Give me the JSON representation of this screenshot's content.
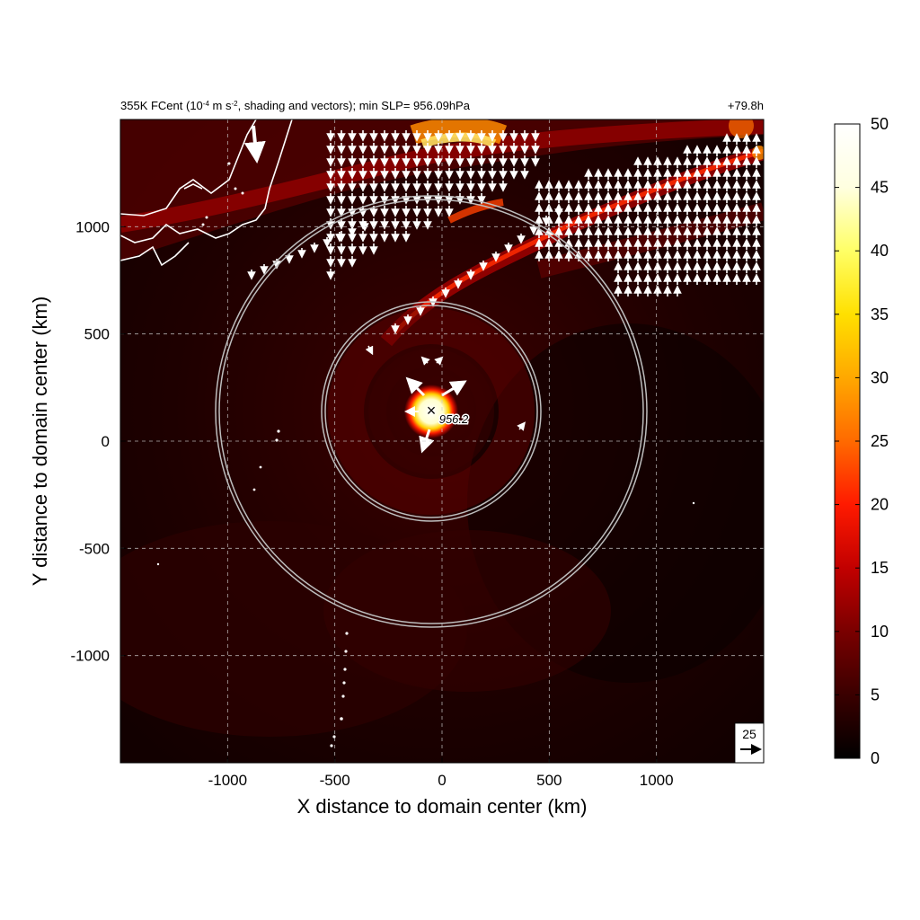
{
  "header": {
    "title_main": "355K FCent (10",
    "title_exp1": "-4",
    "title_mid": " m s",
    "title_exp2": "-2",
    "title_rest": ", shading and vectors); min SLP= 956.09hPa",
    "forecast_hour": "+79.8h"
  },
  "center_marker": {
    "symbol": "×",
    "pressure_label": "956.2"
  },
  "vector_key": {
    "value": "25"
  },
  "colorbar": {
    "min": 0,
    "max": 50,
    "ticks": [
      "0",
      "5",
      "10",
      "15",
      "20",
      "25",
      "30",
      "35",
      "40",
      "45",
      "50"
    ],
    "colors": [
      "#000000",
      "#3a0000",
      "#7a0000",
      "#c20000",
      "#ff1a00",
      "#ff6a00",
      "#ffa800",
      "#ffe000",
      "#ffff66",
      "#ffffe0",
      "#ffffff"
    ]
  },
  "chart_data": {
    "type": "heatmap",
    "title": "355K FCent (10^-4 m s^-2, shading and vectors); min SLP= 956.09hPa",
    "xlabel": "X distance to domain center (km)",
    "ylabel": "Y distance to domain center (km)",
    "xlim": [
      -1500,
      1500
    ],
    "ylim": [
      -1500,
      1500
    ],
    "x_ticks": [
      -1000,
      -500,
      0,
      500,
      1000
    ],
    "y_ticks": [
      -1000,
      -500,
      0,
      500,
      1000
    ],
    "x_tick_labels": [
      "-1000",
      "-500",
      "0",
      "500",
      "1000"
    ],
    "y_tick_labels": [
      "-1000",
      "-500",
      "0",
      "500",
      "1000"
    ],
    "grid": true,
    "colorbar_range": [
      0,
      50
    ],
    "storm_center_km": [
      -40,
      140
    ],
    "min_slp_hPa": 956.09,
    "center_label": "956.2",
    "range_rings_km": [
      500,
      1000
    ],
    "vector_reference": 25,
    "valid_time": "+79.8h"
  }
}
